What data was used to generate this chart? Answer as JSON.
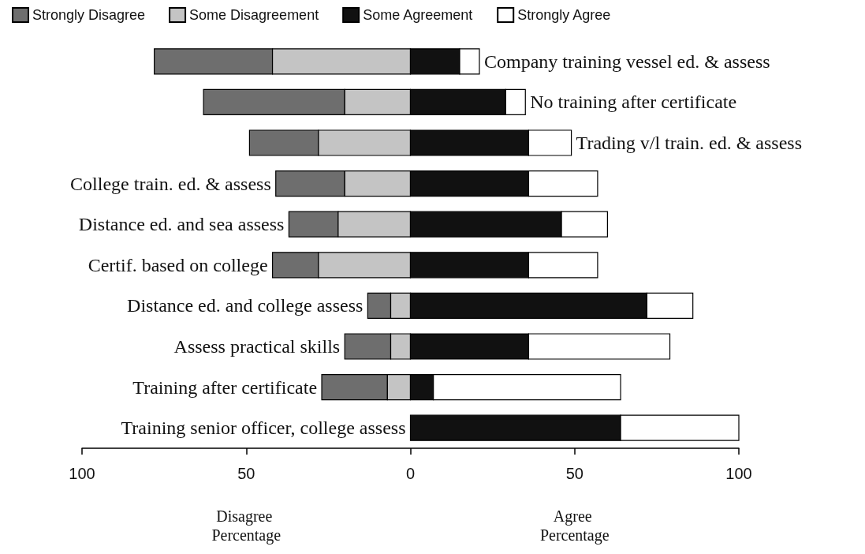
{
  "chart_data": {
    "type": "bar",
    "orientation": "horizontal",
    "categories": [
      "Company training vessel ed. & assess",
      "No training after certificate",
      "Trading v/l train. ed. & assess",
      "College train. ed. & assess",
      "Distance ed. and sea assess",
      "Certif. based on college",
      "Distance ed. and college assess",
      "Assess practical skills",
      "Training after certificate",
      "Training senior officer, college assess"
    ],
    "series": [
      {
        "name": "Strongly Disagree",
        "color": "#6e6e6e",
        "values": [
          -36,
          -43,
          -21,
          -21,
          -15,
          -14,
          -7,
          -14,
          -20,
          null
        ],
        "base": [
          -42,
          -20,
          -28,
          -20,
          -22,
          -28,
          -6,
          -6,
          -7,
          null
        ]
      },
      {
        "name": "Some Disagreement",
        "color": "#c4c4c4",
        "values": [
          -42,
          -20,
          -28,
          -20,
          -22,
          -28,
          -6,
          -6,
          -7,
          null
        ],
        "base": [
          0,
          0,
          0,
          0,
          0,
          0,
          0,
          0,
          0,
          null
        ]
      },
      {
        "name": "Some Agreement",
        "color": "#111111",
        "values": [
          15,
          29,
          36,
          36,
          46,
          36,
          72,
          36,
          7,
          64
        ],
        "base": [
          0,
          0,
          0,
          0,
          0,
          0,
          0,
          0,
          0,
          0
        ]
      },
      {
        "name": "Strongly Agree",
        "color": "#ffffff",
        "values": [
          6,
          6,
          13,
          21,
          14,
          21,
          14,
          43,
          57,
          36
        ],
        "base": [
          15,
          29,
          36,
          36,
          46,
          36,
          72,
          36,
          7,
          64
        ]
      }
    ],
    "xlim": [
      -100,
      100
    ],
    "xticks": [
      {
        "value": -100,
        "label": "100"
      },
      {
        "value": -50,
        "label": "50"
      },
      0,
      {
        "value": 50,
        "label": "50"
      },
      100
    ],
    "annotations": [
      "Disagree Percentage",
      "Agree Percentage"
    ],
    "legend": "top",
    "grid": false
  }
}
